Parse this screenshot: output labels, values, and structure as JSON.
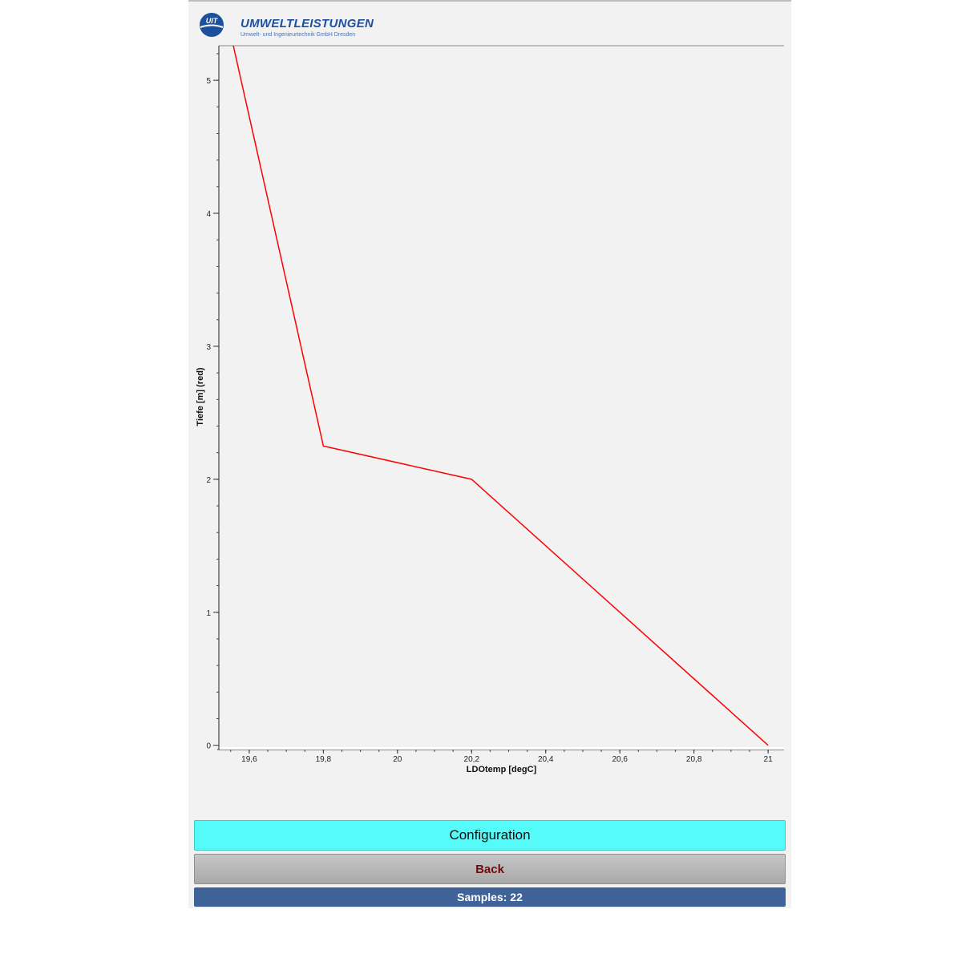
{
  "logo": {
    "text": "UIT",
    "title": "UMWELTLEISTUNGEN",
    "subtitle": "Umwelt- und Ingenieurtechnik GmbH Dresden"
  },
  "chart_data": {
    "type": "line",
    "xlabel": "LDOtemp [degC]",
    "ylabel": "Tiefe [m] (red)",
    "xlim": [
      19.518,
      21.043
    ],
    "ylim": [
      -0.02,
      5.26
    ],
    "x_ticks": [
      19.6,
      19.8,
      20,
      20.2,
      20.4,
      20.6,
      20.8,
      21
    ],
    "x_tick_labels": [
      "19,6",
      "19,8",
      "20",
      "20,2",
      "20,4",
      "20,6",
      "20,8",
      "21"
    ],
    "y_ticks": [
      0,
      1,
      2,
      3,
      4,
      5
    ],
    "y_tick_labels": [
      "0",
      "1",
      "2",
      "3",
      "4",
      "5"
    ],
    "grid": false,
    "series": [
      {
        "color": "#ff0000",
        "points": [
          [
            19.557,
            5.26
          ],
          [
            19.8,
            2.25
          ],
          [
            20.2,
            2.0
          ],
          [
            21.0,
            0.0
          ]
        ]
      }
    ]
  },
  "buttons": {
    "configuration": "Configuration",
    "back": "Back"
  },
  "status": {
    "samples": "Samples: 22"
  }
}
